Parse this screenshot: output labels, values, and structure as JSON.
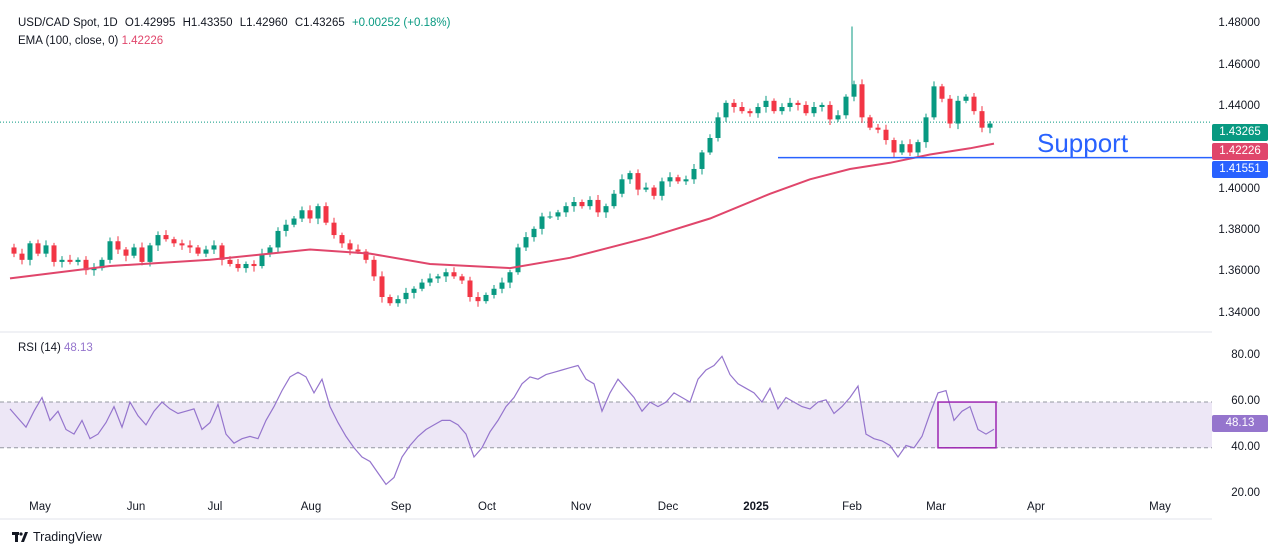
{
  "header": {
    "symbol": "USD/CAD Spot, 1D",
    "open": "O1.42995",
    "high": "H1.43350",
    "low": "L1.42960",
    "close": "C1.43265",
    "change": "+0.00252 (+0.18%)",
    "ema_label": "EMA (100, close, 0)",
    "ema_value": "1.42226"
  },
  "rsi_panel": {
    "label": "RSI (14)",
    "value": "48.13"
  },
  "annotation": "Support",
  "price_tags": {
    "last": "1.43265",
    "ema": "1.42226",
    "support": "1.41551"
  },
  "colors": {
    "up": "#089981",
    "down": "#f23645",
    "ema": "#e0466b",
    "rsi": "#9575cd",
    "support_line": "#2962ff",
    "rsi_band": "#ede7f6",
    "rsi_box": "#9c27b0"
  },
  "footer": {
    "brand": "TradingView",
    "logo_icon": "tradingview-logo-icon"
  },
  "chart_data": [
    {
      "type": "candlestick",
      "title": "USD/CAD Spot, 1D",
      "x_ticks": [
        "May",
        "Jun",
        "Jul",
        "Aug",
        "Sep",
        "Oct",
        "Nov",
        "Dec",
        "2025",
        "Feb",
        "Mar",
        "Apr",
        "May"
      ],
      "y_ticks": [
        "1.34000",
        "1.36000",
        "1.38000",
        "1.40000",
        "1.42000",
        "1.44000",
        "1.46000",
        "1.48000"
      ],
      "ylim": [
        1.333,
        1.486
      ],
      "close_path": [
        [
          0,
          1.372
        ],
        [
          8,
          1.369
        ],
        [
          16,
          1.366
        ],
        [
          24,
          1.374
        ],
        [
          32,
          1.369
        ],
        [
          40,
          1.373
        ],
        [
          48,
          1.365
        ],
        [
          56,
          1.366
        ],
        [
          64,
          1.365
        ],
        [
          72,
          1.366
        ],
        [
          80,
          1.361
        ],
        [
          88,
          1.362
        ],
        [
          96,
          1.366
        ],
        [
          104,
          1.375
        ],
        [
          112,
          1.371
        ],
        [
          120,
          1.368
        ],
        [
          128,
          1.372
        ],
        [
          136,
          1.365
        ],
        [
          144,
          1.373
        ],
        [
          152,
          1.378
        ],
        [
          160,
          1.376
        ],
        [
          168,
          1.374
        ],
        [
          176,
          1.373
        ],
        [
          184,
          1.372
        ],
        [
          192,
          1.369
        ],
        [
          200,
          1.371
        ],
        [
          208,
          1.373
        ],
        [
          216,
          1.366
        ],
        [
          224,
          1.364
        ],
        [
          232,
          1.362
        ],
        [
          240,
          1.364
        ],
        [
          248,
          1.363
        ],
        [
          256,
          1.369
        ],
        [
          264,
          1.372
        ],
        [
          272,
          1.38
        ],
        [
          280,
          1.383
        ],
        [
          288,
          1.386
        ],
        [
          296,
          1.39
        ],
        [
          304,
          1.386
        ],
        [
          312,
          1.392
        ],
        [
          320,
          1.384
        ],
        [
          328,
          1.378
        ],
        [
          336,
          1.374
        ],
        [
          344,
          1.371
        ],
        [
          352,
          1.37
        ],
        [
          360,
          1.366
        ],
        [
          368,
          1.358
        ],
        [
          376,
          1.348
        ],
        [
          384,
          1.345
        ],
        [
          392,
          1.347
        ],
        [
          400,
          1.35
        ],
        [
          408,
          1.352
        ],
        [
          416,
          1.355
        ],
        [
          424,
          1.357
        ],
        [
          432,
          1.358
        ],
        [
          440,
          1.36
        ],
        [
          448,
          1.358
        ],
        [
          456,
          1.356
        ],
        [
          464,
          1.348
        ],
        [
          472,
          1.346
        ],
        [
          480,
          1.349
        ],
        [
          488,
          1.352
        ],
        [
          496,
          1.355
        ],
        [
          504,
          1.36
        ],
        [
          512,
          1.372
        ],
        [
          520,
          1.377
        ],
        [
          528,
          1.381
        ],
        [
          536,
          1.387
        ],
        [
          544,
          1.387
        ],
        [
          552,
          1.389
        ],
        [
          560,
          1.392
        ],
        [
          568,
          1.394
        ],
        [
          576,
          1.392
        ],
        [
          584,
          1.395
        ],
        [
          592,
          1.389
        ],
        [
          600,
          1.392
        ],
        [
          608,
          1.398
        ],
        [
          616,
          1.405
        ],
        [
          624,
          1.408
        ],
        [
          632,
          1.4
        ],
        [
          640,
          1.401
        ],
        [
          648,
          1.397
        ],
        [
          656,
          1.404
        ],
        [
          664,
          1.406
        ],
        [
          672,
          1.404
        ],
        [
          680,
          1.405
        ],
        [
          688,
          1.41
        ],
        [
          696,
          1.418
        ],
        [
          704,
          1.425
        ],
        [
          712,
          1.435
        ],
        [
          720,
          1.442
        ],
        [
          728,
          1.44
        ],
        [
          736,
          1.438
        ],
        [
          744,
          1.437
        ],
        [
          752,
          1.44
        ],
        [
          760,
          1.443
        ],
        [
          768,
          1.438
        ],
        [
          776,
          1.44
        ],
        [
          784,
          1.442
        ],
        [
          792,
          1.441
        ],
        [
          800,
          1.437
        ],
        [
          808,
          1.44
        ],
        [
          816,
          1.441
        ],
        [
          824,
          1.434
        ],
        [
          832,
          1.436
        ],
        [
          840,
          1.445
        ],
        [
          848,
          1.451
        ],
        [
          856,
          1.435
        ],
        [
          864,
          1.43
        ],
        [
          872,
          1.429
        ],
        [
          880,
          1.424
        ],
        [
          888,
          1.418
        ],
        [
          896,
          1.422
        ],
        [
          904,
          1.418
        ],
        [
          912,
          1.423
        ],
        [
          920,
          1.435
        ],
        [
          928,
          1.45
        ],
        [
          936,
          1.444
        ],
        [
          944,
          1.432
        ],
        [
          952,
          1.443
        ],
        [
          960,
          1.445
        ],
        [
          968,
          1.438
        ],
        [
          976,
          1.43
        ],
        [
          984,
          1.432
        ]
      ],
      "ema100_path": [
        [
          0,
          1.357
        ],
        [
          100,
          1.363
        ],
        [
          200,
          1.366
        ],
        [
          300,
          1.371
        ],
        [
          360,
          1.369
        ],
        [
          420,
          1.364
        ],
        [
          500,
          1.362
        ],
        [
          560,
          1.367
        ],
        [
          640,
          1.377
        ],
        [
          700,
          1.386
        ],
        [
          760,
          1.398
        ],
        [
          800,
          1.405
        ],
        [
          840,
          1.41
        ],
        [
          880,
          1.413
        ],
        [
          920,
          1.417
        ],
        [
          960,
          1.42
        ],
        [
          984,
          1.4223
        ]
      ],
      "last_close": 1.43265,
      "ema_last": 1.42226,
      "support_level": 1.41551,
      "annotations": [
        "Support"
      ]
    },
    {
      "type": "line",
      "title": "RSI (14)",
      "y_ticks": [
        "20.00",
        "40.00",
        "60.00",
        "80.00"
      ],
      "ylim": [
        15,
        88
      ],
      "band": [
        40,
        60
      ],
      "last_value": 48.13,
      "values": [
        [
          0,
          57
        ],
        [
          8,
          53
        ],
        [
          16,
          49
        ],
        [
          24,
          56
        ],
        [
          32,
          62
        ],
        [
          40,
          52
        ],
        [
          48,
          56
        ],
        [
          56,
          48
        ],
        [
          64,
          46
        ],
        [
          72,
          52
        ],
        [
          80,
          44
        ],
        [
          88,
          46
        ],
        [
          96,
          51
        ],
        [
          104,
          58
        ],
        [
          112,
          49
        ],
        [
          120,
          60
        ],
        [
          128,
          54
        ],
        [
          136,
          50
        ],
        [
          144,
          56
        ],
        [
          152,
          60
        ],
        [
          160,
          57
        ],
        [
          168,
          55
        ],
        [
          176,
          56
        ],
        [
          184,
          57
        ],
        [
          192,
          48
        ],
        [
          200,
          51
        ],
        [
          208,
          59
        ],
        [
          216,
          46
        ],
        [
          224,
          42
        ],
        [
          232,
          44
        ],
        [
          240,
          45
        ],
        [
          248,
          44
        ],
        [
          256,
          52
        ],
        [
          264,
          58
        ],
        [
          272,
          65
        ],
        [
          280,
          71
        ],
        [
          288,
          73
        ],
        [
          296,
          71
        ],
        [
          304,
          64
        ],
        [
          312,
          70
        ],
        [
          320,
          58
        ],
        [
          328,
          51
        ],
        [
          336,
          45
        ],
        [
          344,
          40
        ],
        [
          352,
          36
        ],
        [
          360,
          34
        ],
        [
          368,
          29
        ],
        [
          376,
          24
        ],
        [
          384,
          27
        ],
        [
          392,
          36
        ],
        [
          400,
          41
        ],
        [
          408,
          45
        ],
        [
          416,
          48
        ],
        [
          424,
          50
        ],
        [
          432,
          52
        ],
        [
          440,
          52
        ],
        [
          448,
          50
        ],
        [
          456,
          46
        ],
        [
          464,
          36
        ],
        [
          472,
          40
        ],
        [
          480,
          47
        ],
        [
          488,
          52
        ],
        [
          496,
          58
        ],
        [
          504,
          62
        ],
        [
          512,
          68
        ],
        [
          520,
          71
        ],
        [
          528,
          70
        ],
        [
          536,
          72
        ],
        [
          544,
          73
        ],
        [
          552,
          74
        ],
        [
          560,
          75
        ],
        [
          568,
          76
        ],
        [
          576,
          70
        ],
        [
          584,
          68
        ],
        [
          592,
          56
        ],
        [
          600,
          64
        ],
        [
          608,
          70
        ],
        [
          616,
          66
        ],
        [
          624,
          62
        ],
        [
          632,
          56
        ],
        [
          640,
          60
        ],
        [
          648,
          58
        ],
        [
          656,
          60
        ],
        [
          664,
          64
        ],
        [
          672,
          62
        ],
        [
          680,
          60
        ],
        [
          688,
          70
        ],
        [
          696,
          74
        ],
        [
          704,
          76
        ],
        [
          712,
          80
        ],
        [
          720,
          72
        ],
        [
          728,
          68
        ],
        [
          736,
          66
        ],
        [
          744,
          64
        ],
        [
          752,
          60
        ],
        [
          760,
          66
        ],
        [
          768,
          57
        ],
        [
          776,
          62
        ],
        [
          784,
          60
        ],
        [
          792,
          58
        ],
        [
          800,
          57
        ],
        [
          808,
          60
        ],
        [
          816,
          61
        ],
        [
          824,
          55
        ],
        [
          832,
          58
        ],
        [
          840,
          62
        ],
        [
          848,
          67
        ],
        [
          856,
          46
        ],
        [
          864,
          44
        ],
        [
          872,
          43
        ],
        [
          880,
          41
        ],
        [
          888,
          36
        ],
        [
          896,
          41
        ],
        [
          904,
          40
        ],
        [
          912,
          45
        ],
        [
          920,
          55
        ],
        [
          928,
          64
        ],
        [
          936,
          65
        ],
        [
          944,
          52
        ],
        [
          952,
          56
        ],
        [
          960,
          58
        ],
        [
          968,
          48
        ],
        [
          976,
          46
        ],
        [
          984,
          48.13
        ]
      ]
    }
  ]
}
